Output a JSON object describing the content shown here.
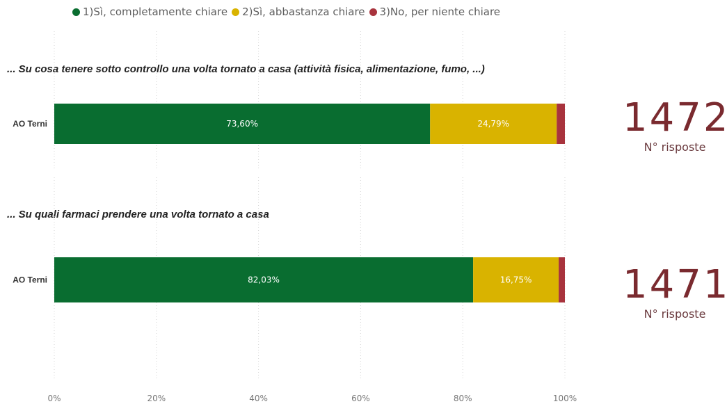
{
  "legend": {
    "items": [
      {
        "label": "1)Sì, completamente chiare",
        "color": "#096d30"
      },
      {
        "label": "2)Sì, abbastanza chiare",
        "color": "#d9b300"
      },
      {
        "label": "3)No, per niente chiare",
        "color": "#a8333d"
      }
    ]
  },
  "questions": [
    {
      "title": "... Su cosa tenere sotto controllo una volta tornato a casa (attività fisica, alimentazione, fumo, ...)",
      "count": "1472",
      "count_label": "N° risposte"
    },
    {
      "title": "... Su quali farmaci prendere una volta tornato a casa",
      "count": "1471",
      "count_label": "N° risposte"
    }
  ],
  "chart_data": [
    {
      "type": "bar",
      "orientation": "horizontal",
      "stacked": true,
      "title": "... Su cosa tenere sotto controllo una volta tornato a casa (attività fisica, alimentazione, fumo, ...)",
      "categories": [
        "AO Terni"
      ],
      "series": [
        {
          "name": "1)Sì, completamente chiare",
          "values": [
            73.6
          ],
          "label": "73,60%",
          "color": "#096d30"
        },
        {
          "name": "2)Sì, abbastanza chiare",
          "values": [
            24.79
          ],
          "label": "24,79%",
          "color": "#d9b300"
        },
        {
          "name": "3)No, per niente chiare",
          "values": [
            1.61
          ],
          "label": "",
          "color": "#a8333d"
        }
      ],
      "xlim": [
        0,
        100
      ],
      "ticks": [
        "0%",
        "20%",
        "40%",
        "60%",
        "80%",
        "100%"
      ],
      "grid": true
    },
    {
      "type": "bar",
      "orientation": "horizontal",
      "stacked": true,
      "title": "... Su quali farmaci prendere una volta tornato a casa",
      "categories": [
        "AO Terni"
      ],
      "series": [
        {
          "name": "1)Sì, completamente chiare",
          "values": [
            82.03
          ],
          "label": "82,03%",
          "color": "#096d30"
        },
        {
          "name": "2)Sì, abbastanza chiare",
          "values": [
            16.75
          ],
          "label": "16,75%",
          "color": "#d9b300"
        },
        {
          "name": "3)No, per niente chiare",
          "values": [
            1.22
          ],
          "label": "",
          "color": "#a8333d"
        }
      ],
      "xlim": [
        0,
        100
      ],
      "ticks": [
        "0%",
        "20%",
        "40%",
        "60%",
        "80%",
        "100%"
      ],
      "grid": true
    }
  ]
}
